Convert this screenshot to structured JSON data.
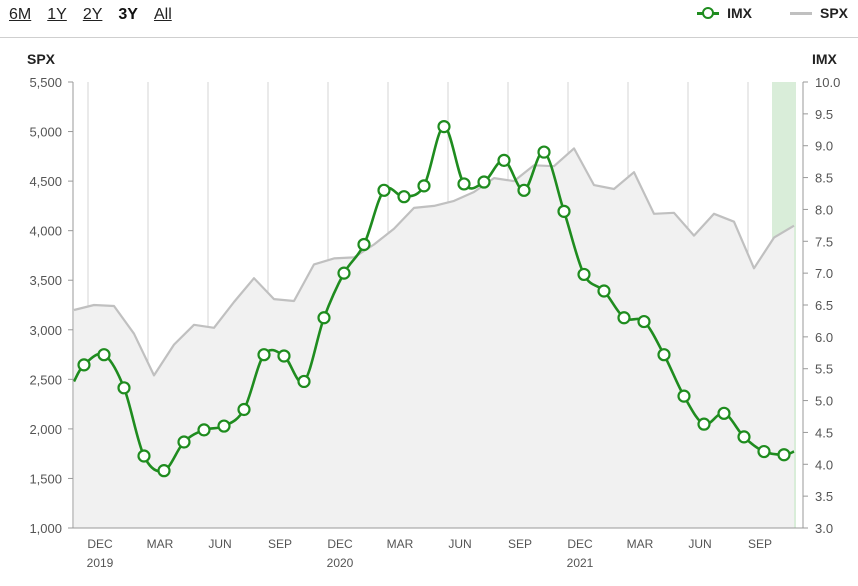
{
  "range_selector": {
    "buttons": [
      {
        "label": "6M",
        "active": false
      },
      {
        "label": "1Y",
        "active": false
      },
      {
        "label": "2Y",
        "active": false
      },
      {
        "label": "3Y",
        "active": true
      },
      {
        "label": "All",
        "active": false
      }
    ]
  },
  "legend": {
    "items": [
      {
        "label": "IMX",
        "color": "#1f8c1f",
        "marker": "circle"
      },
      {
        "label": "SPX",
        "color": "#c0c0c0",
        "marker": "none"
      }
    ]
  },
  "chart_data": {
    "type": "line",
    "left_axis": {
      "title": "SPX",
      "ticks": [
        "1,000",
        "1,500",
        "2,000",
        "2,500",
        "3,000",
        "3,500",
        "4,000",
        "4,500",
        "5,000",
        "5,500"
      ],
      "range": [
        1000,
        5500
      ]
    },
    "right_axis": {
      "title": "IMX",
      "ticks": [
        "3.0",
        "3.5",
        "4.0",
        "4.5",
        "5.0",
        "5.5",
        "6.0",
        "6.5",
        "7.0",
        "7.5",
        "8.0",
        "8.5",
        "9.0",
        "9.5",
        "10.0"
      ],
      "range": [
        3.0,
        10.0
      ]
    },
    "x_ticks": [
      {
        "label": "DEC",
        "year": "2019",
        "x": 1
      },
      {
        "label": "MAR",
        "year": "",
        "x": 4
      },
      {
        "label": "JUN",
        "year": "",
        "x": 7
      },
      {
        "label": "SEP",
        "year": "",
        "x": 10
      },
      {
        "label": "DEC",
        "year": "2020",
        "x": 13
      },
      {
        "label": "MAR",
        "year": "",
        "x": 16
      },
      {
        "label": "JUN",
        "year": "",
        "x": 19
      },
      {
        "label": "SEP",
        "year": "",
        "x": 22
      },
      {
        "label": "DEC",
        "year": "2021",
        "x": 25
      },
      {
        "label": "MAR",
        "year": "",
        "x": 28
      },
      {
        "label": "JUN",
        "year": "",
        "x": 31
      },
      {
        "label": "SEP",
        "year": "",
        "x": 34
      }
    ],
    "series": [
      {
        "name": "SPX",
        "axis": "left",
        "color": "#c0c0c0",
        "area": true,
        "x": [
          0,
          1,
          2,
          3,
          4,
          5,
          6,
          7,
          8,
          9,
          10,
          11,
          12,
          13,
          14,
          15,
          16,
          17,
          18,
          19,
          20,
          21,
          22,
          23,
          24,
          25,
          26,
          27,
          28,
          29,
          30,
          31,
          32,
          33,
          34,
          35,
          36
        ],
        "values": [
          3200,
          3250,
          3240,
          2960,
          2540,
          2850,
          3050,
          3020,
          3280,
          3520,
          3310,
          3290,
          3660,
          3720,
          3730,
          3860,
          4020,
          4230,
          4250,
          4300,
          4390,
          4530,
          4500,
          4660,
          4650,
          4830,
          4460,
          4420,
          4590,
          4170,
          4180,
          3950,
          4170,
          4090,
          3620,
          3930,
          4050
        ]
      },
      {
        "name": "IMX",
        "axis": "right",
        "color": "#1f8c1f",
        "area": false,
        "x": [
          0,
          0.5,
          1.5,
          2.5,
          3.5,
          4.5,
          5.5,
          6.5,
          7.5,
          8.5,
          9.5,
          10.5,
          11.5,
          12.5,
          13.5,
          14.5,
          15.5,
          16.5,
          17.5,
          18.5,
          19.5,
          20.5,
          21.5,
          22.5,
          23.5,
          24.5,
          25.5,
          26.5,
          27.5,
          28.5,
          29.5,
          30.5,
          31.5,
          32.5,
          33.5,
          34.5,
          35.5,
          36
        ],
        "values": [
          5.3,
          5.56,
          5.72,
          5.2,
          4.13,
          3.9,
          4.35,
          4.54,
          4.6,
          4.86,
          5.72,
          5.7,
          5.3,
          6.3,
          7.0,
          7.45,
          8.3,
          8.2,
          8.37,
          9.3,
          8.4,
          8.43,
          8.77,
          8.3,
          8.9,
          7.97,
          6.98,
          6.72,
          6.3,
          6.24,
          5.72,
          5.07,
          4.63,
          4.8,
          4.43,
          4.2,
          4.15,
          4.2
        ]
      }
    ],
    "highlight_band": {
      "x_start": 35,
      "x_end": 36,
      "color": "#d9edd9"
    },
    "grid": "vertical",
    "legend_position": "top-right"
  }
}
